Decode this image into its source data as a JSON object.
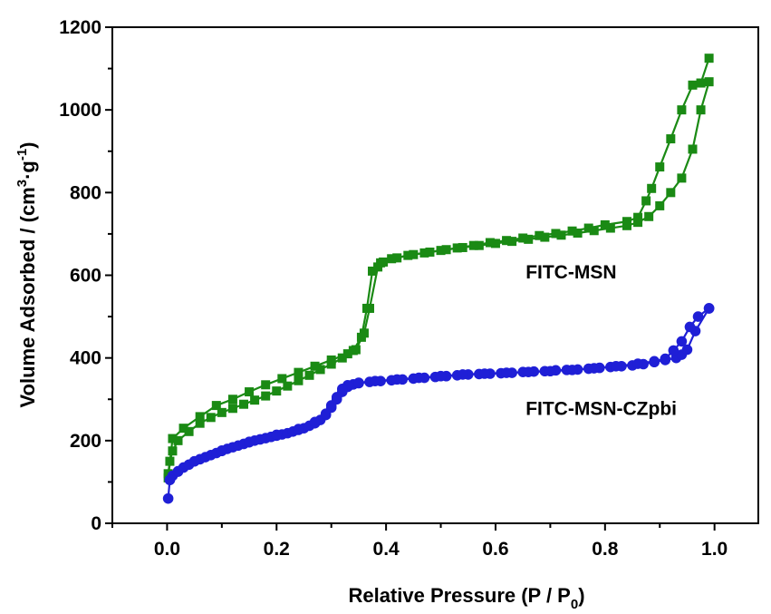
{
  "chart_data": {
    "type": "line",
    "xlabel_main": "Relative Pressure (P / P",
    "xlabel_sub": "0",
    "xlabel_end": ")",
    "ylabel_main": "Volume Adsorbed / (cm",
    "ylabel_sup1": "3",
    "ylabel_mid": "·g",
    "ylabel_sup2": "-1",
    "ylabel_end": ")",
    "xlim": [
      -0.1,
      1.08
    ],
    "ylim": [
      0,
      1200
    ],
    "x_ticks": [
      0.0,
      0.2,
      0.4,
      0.6,
      0.8,
      1.0
    ],
    "x_tick_labels": [
      "0.0",
      "0.2",
      "0.4",
      "0.6",
      "0.8",
      "1.0"
    ],
    "y_ticks": [
      0,
      200,
      400,
      600,
      800,
      1000,
      1200
    ],
    "y_tick_labels": [
      "0",
      "200",
      "400",
      "600",
      "800",
      "1000",
      "1200"
    ],
    "grid": false,
    "annotations": [
      {
        "text": "FITC-MSN",
        "x": 0.655,
        "y": 592
      },
      {
        "text": "FITC-MSN-CZpbi",
        "x": 0.655,
        "y": 262
      }
    ],
    "series": [
      {
        "label": "FITC-MSN",
        "color": "#1a8a14",
        "marker": "square",
        "adsorption": [
          [
            0.002,
            120
          ],
          [
            0.005,
            150
          ],
          [
            0.01,
            175
          ],
          [
            0.02,
            200
          ],
          [
            0.04,
            222
          ],
          [
            0.06,
            242
          ],
          [
            0.08,
            256
          ],
          [
            0.1,
            268
          ],
          [
            0.12,
            278
          ],
          [
            0.14,
            288
          ],
          [
            0.16,
            298
          ],
          [
            0.18,
            308
          ],
          [
            0.2,
            320
          ],
          [
            0.22,
            332
          ],
          [
            0.24,
            345
          ],
          [
            0.26,
            358
          ],
          [
            0.28,
            372
          ],
          [
            0.3,
            385
          ],
          [
            0.32,
            400
          ],
          [
            0.34,
            418
          ],
          [
            0.355,
            450
          ],
          [
            0.365,
            520
          ],
          [
            0.375,
            610
          ],
          [
            0.39,
            630
          ],
          [
            0.42,
            642
          ],
          [
            0.45,
            650
          ],
          [
            0.48,
            656
          ],
          [
            0.51,
            662
          ],
          [
            0.54,
            667
          ],
          [
            0.57,
            672
          ],
          [
            0.6,
            677
          ],
          [
            0.63,
            682
          ],
          [
            0.66,
            687
          ],
          [
            0.69,
            692
          ],
          [
            0.72,
            697
          ],
          [
            0.75,
            702
          ],
          [
            0.78,
            708
          ],
          [
            0.81,
            714
          ],
          [
            0.84,
            720
          ],
          [
            0.86,
            728
          ],
          [
            0.88,
            742
          ],
          [
            0.9,
            768
          ],
          [
            0.92,
            800
          ],
          [
            0.94,
            835
          ],
          [
            0.96,
            905
          ],
          [
            0.975,
            1000
          ],
          [
            0.99,
            1068
          ]
        ],
        "desorption": [
          [
            0.99,
            1125
          ],
          [
            0.975,
            1065
          ],
          [
            0.96,
            1060
          ],
          [
            0.94,
            1000
          ],
          [
            0.92,
            930
          ],
          [
            0.9,
            862
          ],
          [
            0.885,
            810
          ],
          [
            0.875,
            780
          ],
          [
            0.86,
            740
          ],
          [
            0.84,
            730
          ],
          [
            0.8,
            722
          ],
          [
            0.77,
            714
          ],
          [
            0.74,
            707
          ],
          [
            0.71,
            701
          ],
          [
            0.68,
            696
          ],
          [
            0.65,
            690
          ],
          [
            0.62,
            684
          ],
          [
            0.59,
            679
          ],
          [
            0.56,
            672
          ],
          [
            0.53,
            666
          ],
          [
            0.5,
            660
          ],
          [
            0.47,
            654
          ],
          [
            0.44,
            648
          ],
          [
            0.41,
            640
          ],
          [
            0.395,
            632
          ],
          [
            0.385,
            620
          ],
          [
            0.37,
            520
          ],
          [
            0.36,
            460
          ],
          [
            0.345,
            420
          ],
          [
            0.33,
            410
          ],
          [
            0.3,
            395
          ],
          [
            0.27,
            380
          ],
          [
            0.24,
            365
          ],
          [
            0.21,
            350
          ],
          [
            0.18,
            335
          ],
          [
            0.15,
            318
          ],
          [
            0.12,
            300
          ],
          [
            0.09,
            285
          ],
          [
            0.06,
            258
          ],
          [
            0.03,
            230
          ],
          [
            0.01,
            205
          ],
          [
            0.002,
            110
          ]
        ]
      },
      {
        "label": "FITC-MSN-CZpbi",
        "color": "#1f1fd6",
        "marker": "circle",
        "adsorption": [
          [
            0.002,
            60
          ],
          [
            0.005,
            105
          ],
          [
            0.01,
            115
          ],
          [
            0.02,
            125
          ],
          [
            0.03,
            135
          ],
          [
            0.04,
            142
          ],
          [
            0.05,
            150
          ],
          [
            0.06,
            155
          ],
          [
            0.07,
            160
          ],
          [
            0.08,
            165
          ],
          [
            0.09,
            170
          ],
          [
            0.1,
            175
          ],
          [
            0.11,
            180
          ],
          [
            0.12,
            184
          ],
          [
            0.13,
            188
          ],
          [
            0.14,
            192
          ],
          [
            0.15,
            196
          ],
          [
            0.16,
            200
          ],
          [
            0.17,
            203
          ],
          [
            0.18,
            206
          ],
          [
            0.19,
            209
          ],
          [
            0.2,
            212
          ],
          [
            0.21,
            215
          ],
          [
            0.22,
            218
          ],
          [
            0.23,
            222
          ],
          [
            0.24,
            226
          ],
          [
            0.25,
            230
          ],
          [
            0.26,
            236
          ],
          [
            0.27,
            242
          ],
          [
            0.28,
            250
          ],
          [
            0.29,
            262
          ],
          [
            0.3,
            280
          ],
          [
            0.31,
            300
          ],
          [
            0.32,
            318
          ],
          [
            0.33,
            330
          ],
          [
            0.34,
            336
          ],
          [
            0.35,
            339
          ],
          [
            0.37,
            342
          ],
          [
            0.39,
            344
          ],
          [
            0.41,
            346
          ],
          [
            0.43,
            348
          ],
          [
            0.45,
            350
          ],
          [
            0.47,
            352
          ],
          [
            0.49,
            354
          ],
          [
            0.51,
            356
          ],
          [
            0.53,
            358
          ],
          [
            0.55,
            360
          ],
          [
            0.57,
            361
          ],
          [
            0.59,
            362
          ],
          [
            0.61,
            363
          ],
          [
            0.63,
            364
          ],
          [
            0.65,
            366
          ],
          [
            0.67,
            367
          ],
          [
            0.69,
            368
          ],
          [
            0.71,
            370
          ],
          [
            0.73,
            371
          ],
          [
            0.75,
            372
          ],
          [
            0.77,
            374
          ],
          [
            0.79,
            376
          ],
          [
            0.81,
            378
          ],
          [
            0.83,
            380
          ],
          [
            0.85,
            382
          ],
          [
            0.87,
            385
          ],
          [
            0.89,
            390
          ],
          [
            0.91,
            395
          ],
          [
            0.93,
            400
          ],
          [
            0.94,
            408
          ],
          [
            0.95,
            420
          ],
          [
            0.965,
            465
          ],
          [
            0.99,
            520
          ]
        ],
        "desorption": [
          [
            0.99,
            520
          ],
          [
            0.97,
            500
          ],
          [
            0.955,
            475
          ],
          [
            0.94,
            440
          ],
          [
            0.925,
            418
          ],
          [
            0.91,
            398
          ],
          [
            0.89,
            392
          ],
          [
            0.86,
            386
          ],
          [
            0.82,
            380
          ],
          [
            0.78,
            375
          ],
          [
            0.74,
            371
          ],
          [
            0.7,
            368
          ],
          [
            0.66,
            366
          ],
          [
            0.62,
            364
          ],
          [
            0.58,
            362
          ],
          [
            0.54,
            360
          ],
          [
            0.5,
            356
          ],
          [
            0.46,
            352
          ],
          [
            0.42,
            348
          ],
          [
            0.38,
            344
          ],
          [
            0.35,
            340
          ],
          [
            0.33,
            334
          ],
          [
            0.32,
            325
          ],
          [
            0.31,
            305
          ],
          [
            0.3,
            285
          ],
          [
            0.29,
            265
          ],
          [
            0.27,
            245
          ],
          [
            0.24,
            228
          ],
          [
            0.2,
            214
          ],
          [
            0.15,
            197
          ],
          [
            0.1,
            176
          ],
          [
            0.05,
            150
          ],
          [
            0.02,
            126
          ],
          [
            0.005,
            105
          ]
        ]
      }
    ]
  }
}
